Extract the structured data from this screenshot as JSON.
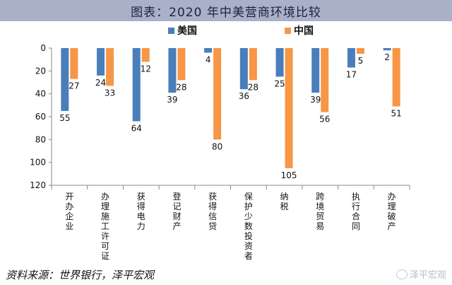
{
  "header": {
    "title": "图表：2020 年中美营商环境比较"
  },
  "source": "资料来源：世界银行，泽平宏观",
  "watermark": "泽平宏观",
  "colors": {
    "us": "#4a7ebb",
    "china": "#f79646",
    "title_bg": "#a9b1c9"
  },
  "chart_data": {
    "type": "bar",
    "title": "",
    "xlabel": "",
    "ylabel": "",
    "ylim": [
      0,
      120
    ],
    "y_inverted": true,
    "yticks": [
      0,
      20,
      40,
      60,
      80,
      100,
      120
    ],
    "grid": false,
    "legend_position": "top-center",
    "categories": [
      "开办企业",
      "办理施工许可证",
      "获得电力",
      "登记财产",
      "获得信贷",
      "保护少数投资者",
      "纳税",
      "跨境贸易",
      "执行合同",
      "办理破产"
    ],
    "series": [
      {
        "name": "美国",
        "color": "#4a7ebb",
        "values": [
          55,
          24,
          64,
          39,
          4,
          36,
          25,
          39,
          17,
          2
        ]
      },
      {
        "name": "中国",
        "color": "#f79646",
        "values": [
          27,
          33,
          12,
          28,
          80,
          28,
          105,
          56,
          5,
          51
        ]
      }
    ]
  }
}
